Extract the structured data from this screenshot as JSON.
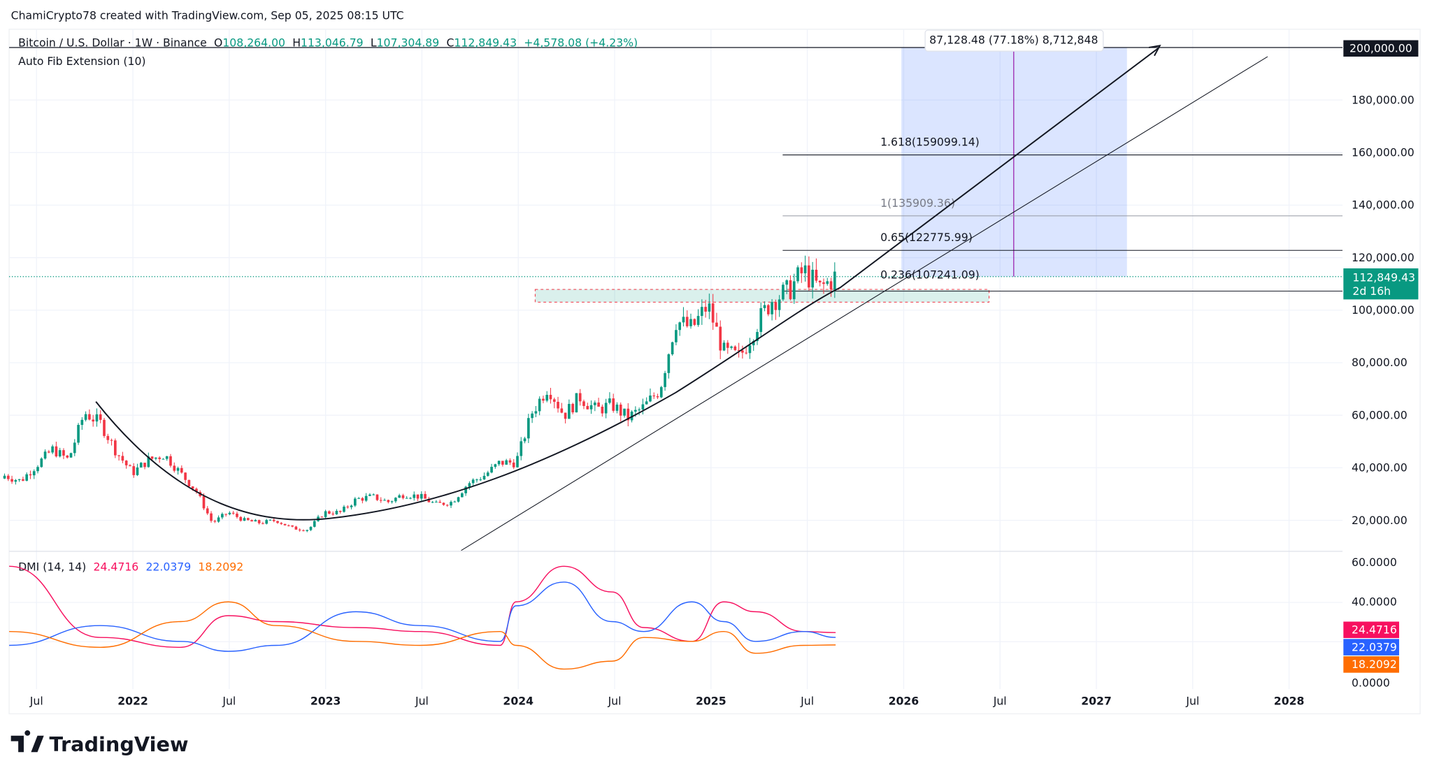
{
  "header": {
    "credit": "ChamiCrypto78 created with TradingView.com, Sep 05, 2025 08:15 UTC",
    "symbol": "Bitcoin / U.S. Dollar · 1W · Binance",
    "o_label": "O",
    "o": "108,264.00",
    "h_label": "H",
    "h": "113,046.79",
    "l_label": "L",
    "l": "107,304.89",
    "c_label": "C",
    "c": "112,849.43",
    "change": "+4,578.08 (+4.23%)",
    "indicator": "Auto Fib Extension (10)"
  },
  "dmi": {
    "label": "DMI (14, 14)",
    "adx": "24.4716",
    "plus_di": "22.0379",
    "minus_di": "18.2092"
  },
  "price_tag": {
    "price": "112,849.43",
    "countdown": "2d 16h"
  },
  "top_tag": "200,000.00",
  "measure_label": "87,128.48 (77.18%) 8,712,848",
  "fib_levels": [
    {
      "label": "1.618(159099.14)",
      "value": 159099.14
    },
    {
      "label": "1(135909.36)",
      "value": 135909.36
    },
    {
      "label": "0.65(122775.99)",
      "value": 122775.99
    },
    {
      "label": "0.236(107241.09)",
      "value": 107241.09
    }
  ],
  "logo": "TradingView",
  "colors": {
    "up": "#089981",
    "down": "#f23645",
    "adx": "#f7105f",
    "plus_di": "#2962ff",
    "minus_di": "#ff6d00",
    "measure": "#2962ff"
  },
  "chart_data": [
    {
      "type": "candlestick",
      "xlim": [
        "2021-05",
        "2028-06"
      ],
      "ylim": [
        0,
        200000
      ],
      "grid": true,
      "y_ticks": [
        "200,000.00",
        "180,000.00",
        "160,000.00",
        "140,000.00",
        "120,000.00",
        "100,000.00",
        "80,000.00",
        "60,000.00",
        "40,000.00",
        "20,000.00"
      ],
      "x_ticks": [
        "Jul",
        "2022",
        "Jul",
        "2023",
        "Jul",
        "2024",
        "Jul",
        "2025",
        "Jul",
        "2026",
        "Jul",
        "2027",
        "Jul",
        "2028"
      ],
      "dates": [
        "2021-05",
        "2021-06",
        "2021-07",
        "2021-08",
        "2021-09",
        "2021-10",
        "2021-11",
        "2021-12",
        "2022-01",
        "2022-02",
        "2022-03",
        "2022-04",
        "2022-05",
        "2022-06",
        "2022-07",
        "2022-08",
        "2022-09",
        "2022-10",
        "2022-11",
        "2022-12",
        "2023-01",
        "2023-02",
        "2023-03",
        "2023-04",
        "2023-05",
        "2023-06",
        "2023-07",
        "2023-08",
        "2023-09",
        "2023-10",
        "2023-11",
        "2023-12",
        "2024-01",
        "2024-02",
        "2024-03",
        "2024-04",
        "2024-05",
        "2024-06",
        "2024-07",
        "2024-08",
        "2024-09",
        "2024-10",
        "2024-11",
        "2024-12",
        "2025-01",
        "2025-02",
        "2025-03",
        "2025-04",
        "2025-05",
        "2025-06",
        "2025-07",
        "2025-08",
        "2025-09"
      ],
      "close": [
        37000,
        35000,
        41000,
        47000,
        43000,
        61000,
        57000,
        46000,
        38000,
        43000,
        45000,
        38000,
        31000,
        19000,
        23000,
        20000,
        19000,
        20000,
        17000,
        16500,
        23000,
        23000,
        28000,
        29000,
        27000,
        30000,
        29000,
        26000,
        27000,
        34000,
        37000,
        42000,
        42000,
        61000,
        71000,
        60000,
        67000,
        62000,
        64000,
        59000,
        63000,
        70000,
        96000,
        93000,
        102000,
        84000,
        82000,
        94000,
        104000,
        107000,
        115000,
        108000,
        112849.43
      ]
    },
    {
      "type": "line",
      "title": "DMI (14, 14)",
      "ylim": [
        0,
        60
      ],
      "y_ticks": [
        "60.0000",
        "40.0000",
        "0.0000"
      ],
      "dates": [
        "2021-05",
        "2021-11",
        "2022-04",
        "2022-07",
        "2022-10",
        "2023-03",
        "2023-07",
        "2023-12",
        "2024-01",
        "2024-04",
        "2024-07",
        "2024-09",
        "2024-12",
        "2025-02",
        "2025-04",
        "2025-07",
        "2025-09"
      ],
      "series": [
        {
          "values": [
            58,
            22,
            17,
            33,
            30,
            27,
            25,
            18,
            40,
            58,
            45,
            27,
            20,
            40,
            35,
            25,
            24.47
          ]
        },
        {
          "values": [
            18,
            28,
            20,
            15,
            18,
            35,
            28,
            20,
            38,
            50,
            30,
            25,
            40,
            30,
            20,
            25,
            22.04
          ]
        },
        {
          "values": [
            25,
            17,
            30,
            40,
            28,
            20,
            18,
            25,
            18,
            6,
            10,
            22,
            20,
            25,
            14,
            18,
            18.21
          ]
        }
      ]
    }
  ]
}
